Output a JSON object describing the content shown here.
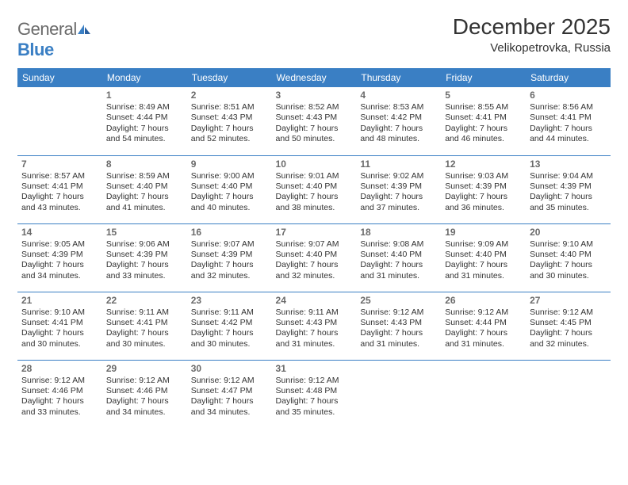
{
  "brand": {
    "text1": "General",
    "text2": "Blue"
  },
  "header": {
    "title": "December 2025",
    "location": "Velikopetrovka, Russia"
  },
  "colors": {
    "accent": "#3a7fc4",
    "text": "#333333",
    "muted": "#6a6a6a",
    "bg": "#ffffff"
  },
  "weekdays": [
    "Sunday",
    "Monday",
    "Tuesday",
    "Wednesday",
    "Thursday",
    "Friday",
    "Saturday"
  ],
  "grid": [
    [
      null,
      {
        "day": "1",
        "sunrise": "Sunrise: 8:49 AM",
        "sunset": "Sunset: 4:44 PM",
        "daylight": "Daylight: 7 hours and 54 minutes."
      },
      {
        "day": "2",
        "sunrise": "Sunrise: 8:51 AM",
        "sunset": "Sunset: 4:43 PM",
        "daylight": "Daylight: 7 hours and 52 minutes."
      },
      {
        "day": "3",
        "sunrise": "Sunrise: 8:52 AM",
        "sunset": "Sunset: 4:43 PM",
        "daylight": "Daylight: 7 hours and 50 minutes."
      },
      {
        "day": "4",
        "sunrise": "Sunrise: 8:53 AM",
        "sunset": "Sunset: 4:42 PM",
        "daylight": "Daylight: 7 hours and 48 minutes."
      },
      {
        "day": "5",
        "sunrise": "Sunrise: 8:55 AM",
        "sunset": "Sunset: 4:41 PM",
        "daylight": "Daylight: 7 hours and 46 minutes."
      },
      {
        "day": "6",
        "sunrise": "Sunrise: 8:56 AM",
        "sunset": "Sunset: 4:41 PM",
        "daylight": "Daylight: 7 hours and 44 minutes."
      }
    ],
    [
      {
        "day": "7",
        "sunrise": "Sunrise: 8:57 AM",
        "sunset": "Sunset: 4:41 PM",
        "daylight": "Daylight: 7 hours and 43 minutes."
      },
      {
        "day": "8",
        "sunrise": "Sunrise: 8:59 AM",
        "sunset": "Sunset: 4:40 PM",
        "daylight": "Daylight: 7 hours and 41 minutes."
      },
      {
        "day": "9",
        "sunrise": "Sunrise: 9:00 AM",
        "sunset": "Sunset: 4:40 PM",
        "daylight": "Daylight: 7 hours and 40 minutes."
      },
      {
        "day": "10",
        "sunrise": "Sunrise: 9:01 AM",
        "sunset": "Sunset: 4:40 PM",
        "daylight": "Daylight: 7 hours and 38 minutes."
      },
      {
        "day": "11",
        "sunrise": "Sunrise: 9:02 AM",
        "sunset": "Sunset: 4:39 PM",
        "daylight": "Daylight: 7 hours and 37 minutes."
      },
      {
        "day": "12",
        "sunrise": "Sunrise: 9:03 AM",
        "sunset": "Sunset: 4:39 PM",
        "daylight": "Daylight: 7 hours and 36 minutes."
      },
      {
        "day": "13",
        "sunrise": "Sunrise: 9:04 AM",
        "sunset": "Sunset: 4:39 PM",
        "daylight": "Daylight: 7 hours and 35 minutes."
      }
    ],
    [
      {
        "day": "14",
        "sunrise": "Sunrise: 9:05 AM",
        "sunset": "Sunset: 4:39 PM",
        "daylight": "Daylight: 7 hours and 34 minutes."
      },
      {
        "day": "15",
        "sunrise": "Sunrise: 9:06 AM",
        "sunset": "Sunset: 4:39 PM",
        "daylight": "Daylight: 7 hours and 33 minutes."
      },
      {
        "day": "16",
        "sunrise": "Sunrise: 9:07 AM",
        "sunset": "Sunset: 4:39 PM",
        "daylight": "Daylight: 7 hours and 32 minutes."
      },
      {
        "day": "17",
        "sunrise": "Sunrise: 9:07 AM",
        "sunset": "Sunset: 4:40 PM",
        "daylight": "Daylight: 7 hours and 32 minutes."
      },
      {
        "day": "18",
        "sunrise": "Sunrise: 9:08 AM",
        "sunset": "Sunset: 4:40 PM",
        "daylight": "Daylight: 7 hours and 31 minutes."
      },
      {
        "day": "19",
        "sunrise": "Sunrise: 9:09 AM",
        "sunset": "Sunset: 4:40 PM",
        "daylight": "Daylight: 7 hours and 31 minutes."
      },
      {
        "day": "20",
        "sunrise": "Sunrise: 9:10 AM",
        "sunset": "Sunset: 4:40 PM",
        "daylight": "Daylight: 7 hours and 30 minutes."
      }
    ],
    [
      {
        "day": "21",
        "sunrise": "Sunrise: 9:10 AM",
        "sunset": "Sunset: 4:41 PM",
        "daylight": "Daylight: 7 hours and 30 minutes."
      },
      {
        "day": "22",
        "sunrise": "Sunrise: 9:11 AM",
        "sunset": "Sunset: 4:41 PM",
        "daylight": "Daylight: 7 hours and 30 minutes."
      },
      {
        "day": "23",
        "sunrise": "Sunrise: 9:11 AM",
        "sunset": "Sunset: 4:42 PM",
        "daylight": "Daylight: 7 hours and 30 minutes."
      },
      {
        "day": "24",
        "sunrise": "Sunrise: 9:11 AM",
        "sunset": "Sunset: 4:43 PM",
        "daylight": "Daylight: 7 hours and 31 minutes."
      },
      {
        "day": "25",
        "sunrise": "Sunrise: 9:12 AM",
        "sunset": "Sunset: 4:43 PM",
        "daylight": "Daylight: 7 hours and 31 minutes."
      },
      {
        "day": "26",
        "sunrise": "Sunrise: 9:12 AM",
        "sunset": "Sunset: 4:44 PM",
        "daylight": "Daylight: 7 hours and 31 minutes."
      },
      {
        "day": "27",
        "sunrise": "Sunrise: 9:12 AM",
        "sunset": "Sunset: 4:45 PM",
        "daylight": "Daylight: 7 hours and 32 minutes."
      }
    ],
    [
      {
        "day": "28",
        "sunrise": "Sunrise: 9:12 AM",
        "sunset": "Sunset: 4:46 PM",
        "daylight": "Daylight: 7 hours and 33 minutes."
      },
      {
        "day": "29",
        "sunrise": "Sunrise: 9:12 AM",
        "sunset": "Sunset: 4:46 PM",
        "daylight": "Daylight: 7 hours and 34 minutes."
      },
      {
        "day": "30",
        "sunrise": "Sunrise: 9:12 AM",
        "sunset": "Sunset: 4:47 PM",
        "daylight": "Daylight: 7 hours and 34 minutes."
      },
      {
        "day": "31",
        "sunrise": "Sunrise: 9:12 AM",
        "sunset": "Sunset: 4:48 PM",
        "daylight": "Daylight: 7 hours and 35 minutes."
      },
      null,
      null,
      null
    ]
  ]
}
